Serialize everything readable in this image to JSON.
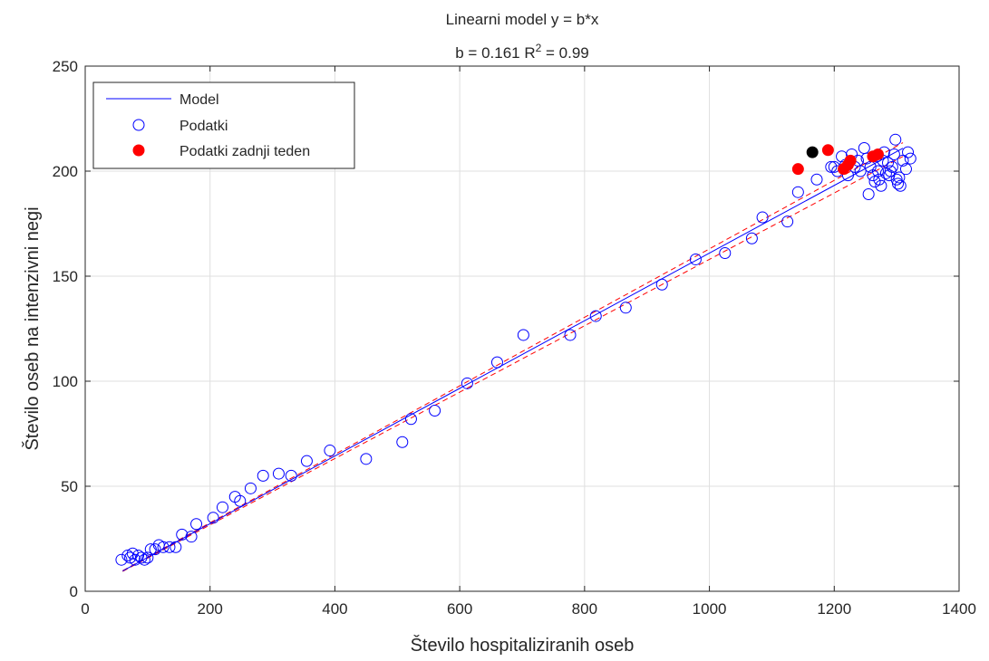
{
  "chart_data": {
    "type": "scatter",
    "title": "Linearni model y = b*x",
    "subtitle": {
      "prefix": "b = 0.161 R",
      "superscript": "2",
      "suffix": " = 0.99"
    },
    "xlabel": "Število hospitaliziranih oseb",
    "ylabel": "Število oseb na intenzivni negi",
    "xlim": [
      0,
      1400
    ],
    "ylim": [
      0,
      250
    ],
    "xticks": [
      0,
      200,
      400,
      600,
      800,
      1000,
      1200,
      1400
    ],
    "yticks": [
      0,
      50,
      100,
      150,
      200,
      250
    ],
    "grid": true,
    "legend_position": "top-left",
    "colors": {
      "model": "#0000ff",
      "data": "#0000ff",
      "last_week": "#ff0000",
      "latest": "#000000",
      "ci": "#ff0000"
    },
    "series": [
      {
        "name": "Model",
        "kind": "line",
        "slope": 0.161,
        "x": [
          60,
          1310
        ]
      },
      {
        "name": "Podatki",
        "kind": "scatter-open",
        "points": [
          [
            58,
            15
          ],
          [
            68,
            17
          ],
          [
            72,
            16
          ],
          [
            76,
            18
          ],
          [
            80,
            15
          ],
          [
            85,
            17
          ],
          [
            90,
            16
          ],
          [
            95,
            15
          ],
          [
            100,
            16
          ],
          [
            105,
            20
          ],
          [
            112,
            20
          ],
          [
            118,
            22
          ],
          [
            125,
            21
          ],
          [
            135,
            21
          ],
          [
            145,
            21
          ],
          [
            155,
            27
          ],
          [
            170,
            26
          ],
          [
            178,
            32
          ],
          [
            205,
            35
          ],
          [
            220,
            40
          ],
          [
            240,
            45
          ],
          [
            248,
            43
          ],
          [
            265,
            49
          ],
          [
            285,
            55
          ],
          [
            310,
            56
          ],
          [
            330,
            55
          ],
          [
            355,
            62
          ],
          [
            392,
            67
          ],
          [
            450,
            63
          ],
          [
            508,
            71
          ],
          [
            522,
            82
          ],
          [
            560,
            86
          ],
          [
            612,
            99
          ],
          [
            660,
            109
          ],
          [
            702,
            122
          ],
          [
            777,
            122
          ],
          [
            818,
            131
          ],
          [
            866,
            135
          ],
          [
            924,
            146
          ],
          [
            978,
            158
          ],
          [
            1025,
            161
          ],
          [
            1068,
            168
          ],
          [
            1085,
            178
          ],
          [
            1125,
            176
          ],
          [
            1142,
            190
          ],
          [
            1172,
            196
          ],
          [
            1195,
            202
          ],
          [
            1200,
            202
          ],
          [
            1205,
            200
          ],
          [
            1212,
            207
          ],
          [
            1218,
            203
          ],
          [
            1222,
            198
          ],
          [
            1228,
            208
          ],
          [
            1233,
            202
          ],
          [
            1238,
            205
          ],
          [
            1242,
            200
          ],
          [
            1248,
            211
          ],
          [
            1252,
            206
          ],
          [
            1255,
            189
          ],
          [
            1258,
            202
          ],
          [
            1262,
            198
          ],
          [
            1265,
            195
          ],
          [
            1268,
            207
          ],
          [
            1270,
            200
          ],
          [
            1272,
            196
          ],
          [
            1275,
            193
          ],
          [
            1278,
            205
          ],
          [
            1280,
            209
          ],
          [
            1283,
            199
          ],
          [
            1286,
            204
          ],
          [
            1288,
            198
          ],
          [
            1290,
            200
          ],
          [
            1293,
            202
          ],
          [
            1296,
            208
          ],
          [
            1298,
            215
          ],
          [
            1300,
            196
          ],
          [
            1302,
            194
          ],
          [
            1304,
            197
          ],
          [
            1306,
            193
          ],
          [
            1310,
            205
          ],
          [
            1315,
            201
          ],
          [
            1318,
            209
          ],
          [
            1322,
            206
          ]
        ]
      },
      {
        "name": "Podatki zadnji teden",
        "kind": "scatter-filled",
        "points": [
          [
            1142,
            201
          ],
          [
            1190,
            210
          ],
          [
            1215,
            201
          ],
          [
            1222,
            203
          ],
          [
            1226,
            205
          ],
          [
            1262,
            207
          ],
          [
            1270,
            208
          ]
        ]
      },
      {
        "kind": "scatter-filled-latest",
        "points": [
          [
            1165,
            209
          ]
        ]
      }
    ],
    "confidence_band": {
      "slope_lower": 0.158,
      "slope_upper": 0.163,
      "x": [
        60,
        1310
      ]
    }
  }
}
